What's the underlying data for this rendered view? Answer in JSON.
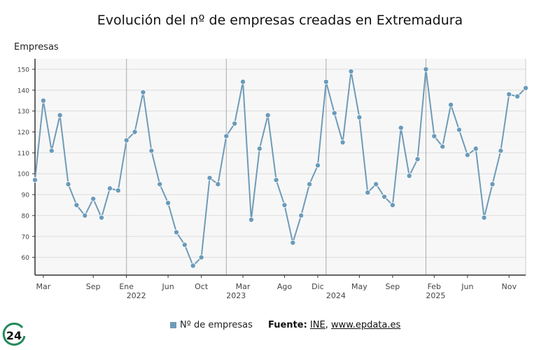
{
  "chart_data": {
    "type": "line",
    "title": "Evolución del nº de empresas creadas en Extremadura",
    "ylabel": "Empresas",
    "xlabel": "",
    "ylim": [
      51.5,
      155
    ],
    "yticks": [
      60,
      70,
      80,
      90,
      100,
      110,
      120,
      130,
      140,
      150
    ],
    "grid": true,
    "legend_placement": "bottom",
    "series": [
      {
        "name": "Nº de empresas",
        "color": "#6f9bb8",
        "x": [
          "2021-02",
          "2021-03",
          "2021-04",
          "2021-05",
          "2021-06",
          "2021-07",
          "2021-08",
          "2021-09",
          "2021-10",
          "2021-11",
          "2021-12",
          "2022-01",
          "2022-02",
          "2022-03",
          "2022-04",
          "2022-05",
          "2022-06",
          "2022-07",
          "2022-08",
          "2022-09",
          "2022-10",
          "2022-11",
          "2022-12",
          "2023-01",
          "2023-02",
          "2023-03",
          "2023-04",
          "2023-05",
          "2023-06",
          "2023-07",
          "2023-08",
          "2023-09",
          "2023-10",
          "2023-11",
          "2023-12",
          "2024-01",
          "2024-02",
          "2024-03",
          "2024-04",
          "2024-05",
          "2024-06",
          "2024-07",
          "2024-08",
          "2024-09",
          "2024-10",
          "2024-11",
          "2024-12",
          "2025-01",
          "2025-02",
          "2025-03",
          "2025-04",
          "2025-05",
          "2025-06",
          "2025-07",
          "2025-08",
          "2025-09",
          "2025-10",
          "2025-11",
          "2025-12",
          "2026-01"
        ],
        "values": [
          97,
          135,
          111,
          128,
          95,
          85,
          80,
          88,
          79,
          93,
          92,
          116,
          120,
          139,
          111,
          95,
          86,
          72,
          66,
          56,
          60,
          98,
          95,
          118,
          124,
          144,
          78,
          112,
          128,
          97,
          85,
          67,
          80,
          95,
          104,
          144,
          129,
          115,
          149,
          127,
          91,
          95,
          89,
          85,
          122,
          99,
          107,
          150,
          118,
          113,
          133,
          121,
          109,
          112,
          79,
          95,
          111,
          138,
          137,
          141
        ]
      }
    ],
    "xticks": [
      {
        "label": "Mar",
        "year": "",
        "date": "2021-03"
      },
      {
        "label": "Sep",
        "year": "",
        "date": "2021-09"
      },
      {
        "label": "Ene",
        "year": "2022",
        "date": "2022-01"
      },
      {
        "label": "Jun",
        "year": "",
        "date": "2022-06"
      },
      {
        "label": "Oct",
        "year": "",
        "date": "2022-10"
      },
      {
        "label": "Mar",
        "year": "2023",
        "date": "2023-03"
      },
      {
        "label": "Ago",
        "year": "",
        "date": "2023-08"
      },
      {
        "label": "Dic",
        "year": "2024",
        "date": "2023-12"
      },
      {
        "label": "May",
        "year": "",
        "date": "2024-05"
      },
      {
        "label": "Sep",
        "year": "",
        "date": "2024-09"
      },
      {
        "label": "Feb",
        "year": "2025",
        "date": "2025-02"
      },
      {
        "label": "Jun",
        "year": "",
        "date": "2025-06"
      },
      {
        "label": "Nov",
        "year": "",
        "date": "2025-11"
      }
    ],
    "year_dividers": [
      "2022-01",
      "2023-01",
      "2024-01",
      "2025-01"
    ]
  },
  "legend": {
    "label": "Nº de empresas"
  },
  "source": {
    "prefix": "Fuente:",
    "link1": "INE",
    "separator": ",",
    "link2": "www.epdata.es"
  },
  "logo": {
    "text": "24"
  }
}
